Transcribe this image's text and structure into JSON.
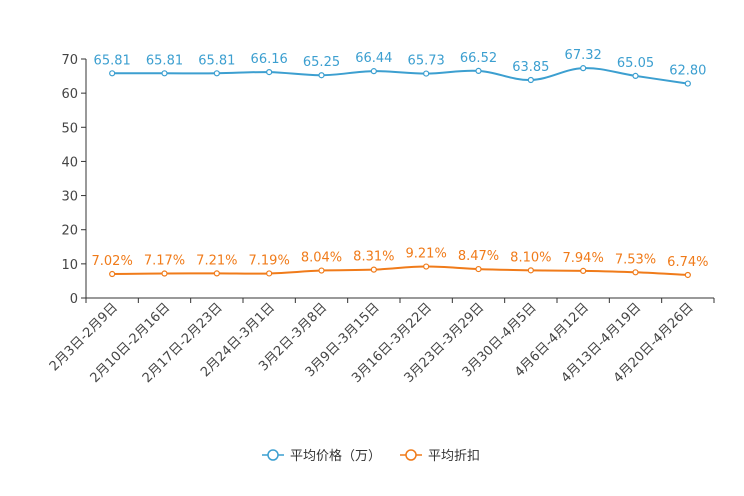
{
  "chart_data": {
    "type": "line",
    "categories": [
      "2月3日-2月9日",
      "2月10日-2月16日",
      "2月17日-2月23日",
      "2月24日-3月1日",
      "3月2日-3月8日",
      "3月9日-3月15日",
      "3月16日-3月22日",
      "3月23日-3月29日",
      "3月30日-4月5日",
      "4月6日-4月12日",
      "4月13日-4月19日",
      "4月20日-4月26日"
    ],
    "series": [
      {
        "name": "平均价格（万）",
        "color": "#3c9fd0",
        "values": [
          65.81,
          65.81,
          65.81,
          66.16,
          65.25,
          66.44,
          65.73,
          66.52,
          63.85,
          67.32,
          65.05,
          62.8
        ],
        "labels": [
          "65.81",
          "65.81",
          "65.81",
          "66.16",
          "65.25",
          "66.44",
          "65.73",
          "66.52",
          "63.85",
          "67.32",
          "65.05",
          "62.80"
        ]
      },
      {
        "name": "平均折扣",
        "color": "#f07b1a",
        "values": [
          7.02,
          7.17,
          7.21,
          7.19,
          8.04,
          8.31,
          9.21,
          8.47,
          8.1,
          7.94,
          7.53,
          6.74
        ],
        "labels": [
          "7.02%",
          "7.17%",
          "7.21%",
          "7.19%",
          "8.04%",
          "8.31%",
          "9.21%",
          "8.47%",
          "8.10%",
          "7.94%",
          "7.53%",
          "6.74%"
        ]
      }
    ],
    "ylim": [
      0,
      70
    ],
    "yticks": [
      0,
      10,
      20,
      30,
      40,
      50,
      60,
      70
    ],
    "ytick_labels": [
      "0",
      "10",
      "20",
      "30",
      "40",
      "50",
      "60",
      "70"
    ],
    "legend_position": "bottom-center",
    "grid": false,
    "title": "",
    "xlabel": "",
    "ylabel": ""
  }
}
